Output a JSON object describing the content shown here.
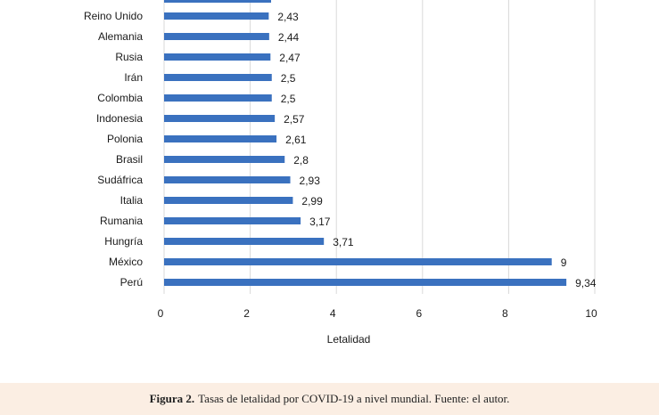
{
  "chart_data": {
    "type": "bar",
    "orientation": "horizontal",
    "categories": [
      "Reino Unido",
      "Alemania",
      "Rusia",
      "Irán",
      "Colombia",
      "Indonesia",
      "Polonia",
      "Brasil",
      "Sudáfrica",
      "Italia",
      "Rumania",
      "Hungría",
      "México",
      "Perú"
    ],
    "values": [
      2.43,
      2.44,
      2.47,
      2.5,
      2.5,
      2.57,
      2.61,
      2.8,
      2.93,
      2.99,
      3.17,
      3.71,
      9,
      9.34
    ],
    "value_labels": [
      "2,43",
      "2,44",
      "2,47",
      "2,5",
      "2,5",
      "2,57",
      "2,61",
      "2,8",
      "2,93",
      "2,99",
      "3,17",
      "3,71",
      "9",
      "9,34"
    ],
    "xlabel": "Letalidad",
    "ylabel": "",
    "xlim": [
      0,
      10
    ],
    "xticks": [
      "0",
      "2",
      "4",
      "6",
      "8",
      "10"
    ],
    "grid": true,
    "bar_color": "#3a71bf",
    "grid_color": "#d9d9d9"
  },
  "caption": {
    "label": "Figura 2.",
    "text": "Tasas de letalidad por COVID-19 a nivel mundial. Fuente: el autor."
  }
}
